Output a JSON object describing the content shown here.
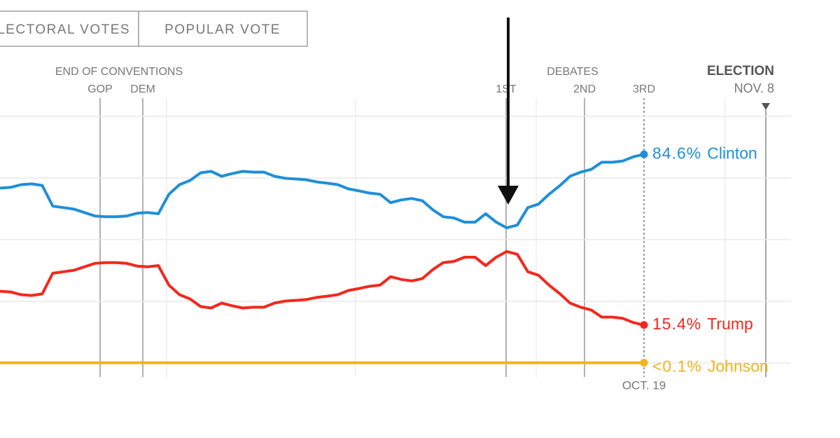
{
  "chart_data": {
    "type": "line",
    "toggle": [
      "ELECTORAL VOTES",
      "POPULAR VOTE"
    ],
    "conventions": {
      "title": "END OF CONVENTIONS",
      "labels": [
        "GOP",
        "DEM"
      ]
    },
    "debates": {
      "title": "DEBATES",
      "labels": [
        "1ST",
        "2ND",
        "3RD"
      ]
    },
    "election": {
      "title": "ELECTION",
      "date": "NOV. 8"
    },
    "last_update": "OCT. 19",
    "ylim": [
      0,
      100
    ],
    "yticks": [
      0,
      25,
      50,
      75,
      100
    ],
    "grid": true,
    "series": [
      {
        "name": "Clinton",
        "color": "#1f8fd8",
        "values": [
          70.9,
          71.2,
          72.3,
          72.6,
          72.0,
          63.6,
          63.0,
          62.4,
          61.0,
          59.6,
          59.3,
          59.3,
          59.6,
          60.7,
          61.0,
          60.5,
          68.4,
          72.3,
          74.0,
          77.1,
          77.7,
          75.7,
          76.8,
          77.7,
          77.4,
          77.4,
          75.7,
          74.9,
          74.6,
          74.3,
          73.4,
          72.9,
          72.3,
          70.6,
          69.8,
          68.9,
          68.4,
          65.0,
          66.1,
          66.7,
          65.8,
          62.1,
          59.3,
          58.8,
          57.1,
          57.1,
          60.5,
          57.1,
          54.8,
          55.9,
          63.0,
          64.4,
          68.4,
          71.8,
          75.7,
          77.4,
          78.5,
          81.4,
          81.4,
          81.9,
          83.6,
          84.6
        ],
        "value_labels": [
          null,
          null,
          null,
          null,
          null,
          null,
          null,
          null,
          null,
          null,
          null,
          null,
          null,
          null,
          null,
          null,
          null,
          null,
          null,
          null,
          null,
          null,
          null,
          null,
          null,
          null,
          null,
          null,
          null,
          null,
          null,
          null,
          null,
          null,
          null,
          null,
          null,
          null,
          null,
          null,
          null,
          null,
          null,
          null,
          null,
          null,
          null,
          null,
          null,
          null,
          null,
          null,
          null,
          null,
          null,
          null,
          null,
          null,
          null,
          null,
          null,
          "84.6%"
        ]
      },
      {
        "name": "Trump",
        "color": "#f3281c",
        "values": [
          29.1,
          28.8,
          27.7,
          27.4,
          28.0,
          36.4,
          37.0,
          37.6,
          39.0,
          40.4,
          40.7,
          40.7,
          40.4,
          39.3,
          39.0,
          39.5,
          31.6,
          27.7,
          26.0,
          22.9,
          22.3,
          24.3,
          23.2,
          22.3,
          22.6,
          22.6,
          24.3,
          25.1,
          25.4,
          25.7,
          26.6,
          27.1,
          27.7,
          29.4,
          30.2,
          31.1,
          31.6,
          35.0,
          33.9,
          33.3,
          34.2,
          37.9,
          40.7,
          41.2,
          42.9,
          42.9,
          39.5,
          42.9,
          45.2,
          44.1,
          37.0,
          35.6,
          31.6,
          28.2,
          24.3,
          22.6,
          21.5,
          18.6,
          18.6,
          18.1,
          16.4,
          15.4
        ],
        "value_labels": [
          null,
          null,
          null,
          null,
          null,
          null,
          null,
          null,
          null,
          null,
          null,
          null,
          null,
          null,
          null,
          null,
          null,
          null,
          null,
          null,
          null,
          null,
          null,
          null,
          null,
          null,
          null,
          null,
          null,
          null,
          null,
          null,
          null,
          null,
          null,
          null,
          null,
          null,
          null,
          null,
          null,
          null,
          null,
          null,
          null,
          null,
          null,
          null,
          null,
          null,
          null,
          null,
          null,
          null,
          null,
          null,
          null,
          null,
          null,
          null,
          null,
          "15.4%"
        ]
      },
      {
        "name": "Johnson",
        "color": "#f2b31c",
        "values": [
          0.1,
          0.1,
          0.1,
          0.1,
          0.1,
          0.1,
          0.1,
          0.1,
          0.1,
          0.1,
          0.1,
          0.1,
          0.1,
          0.1,
          0.1,
          0.1,
          0.1,
          0.1,
          0.1,
          0.1,
          0.1,
          0.1,
          0.1,
          0.1,
          0.1,
          0.1,
          0.1,
          0.1,
          0.1,
          0.1,
          0.1,
          0.1,
          0.1,
          0.1,
          0.1,
          0.1,
          0.1,
          0.1,
          0.1,
          0.1,
          0.1,
          0.1,
          0.1,
          0.1,
          0.1,
          0.1,
          0.1,
          0.1,
          0.1,
          0.1,
          0.1,
          0.1,
          0.1,
          0.1,
          0.1,
          0.1,
          0.1,
          0.1,
          0.1,
          0.1,
          0.1,
          0.1
        ],
        "value_labels": [
          null,
          null,
          null,
          null,
          null,
          null,
          null,
          null,
          null,
          null,
          null,
          null,
          null,
          null,
          null,
          null,
          null,
          null,
          null,
          null,
          null,
          null,
          null,
          null,
          null,
          null,
          null,
          null,
          null,
          null,
          null,
          null,
          null,
          null,
          null,
          null,
          null,
          null,
          null,
          null,
          null,
          null,
          null,
          null,
          null,
          null,
          null,
          null,
          null,
          null,
          null,
          null,
          null,
          null,
          null,
          null,
          null,
          null,
          null,
          null,
          null,
          "<0.1%"
        ]
      }
    ]
  }
}
